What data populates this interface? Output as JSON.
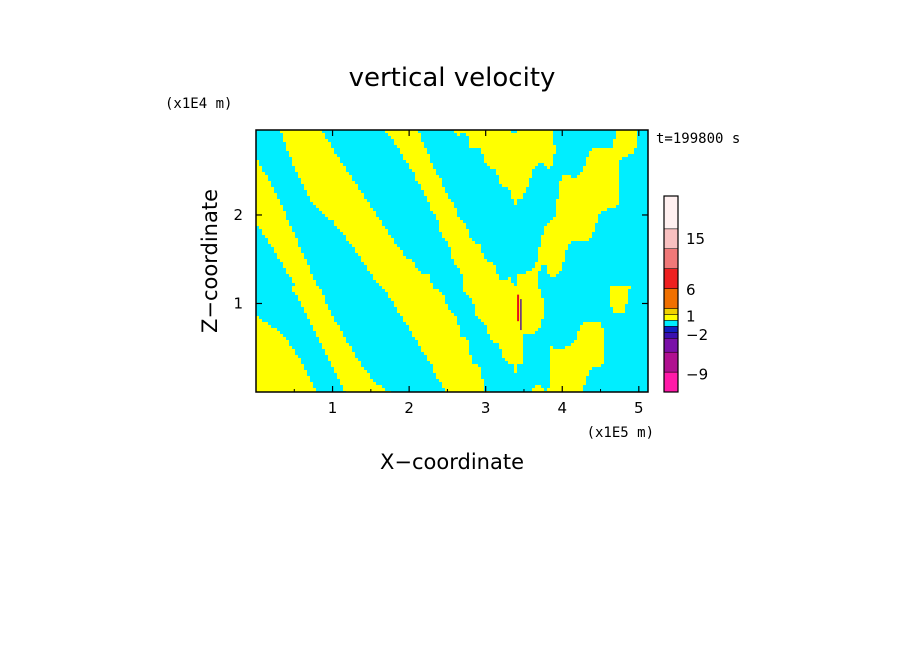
{
  "chart_data": {
    "type": "heatmap",
    "title": "vertical velocity",
    "xlabel": "X−coordinate",
    "ylabel": "Z−coordinate",
    "x_scale_label": "(x1E5 m)",
    "y_scale_label": "(x1E4 m)",
    "time_label": "t=199800 s",
    "xlim": [
      0,
      5.12
    ],
    "ylim": [
      0,
      2.96
    ],
    "x_ticks": [
      {
        "value": 1,
        "label": "1"
      },
      {
        "value": 2,
        "label": "2"
      },
      {
        "value": 3,
        "label": "3"
      },
      {
        "value": 4,
        "label": "4"
      },
      {
        "value": 5,
        "label": "5"
      }
    ],
    "y_ticks": [
      {
        "value": 1,
        "label": "1"
      },
      {
        "value": 2,
        "label": "2"
      }
    ],
    "field_colors": {
      "positive": "#ffff00",
      "negative": "#00eeff",
      "strong_positive": "#e8101a",
      "strong_negative": "#5a2090"
    },
    "colorbar": {
      "bins": [
        {
          "color": "#ff1aa8"
        },
        {
          "color": "#b01090"
        },
        {
          "color": "#7a10a8"
        },
        {
          "color": "#3a10b0"
        },
        {
          "color": "#1020c0"
        },
        {
          "color": "#00eeff"
        },
        {
          "color": "#ffff00"
        },
        {
          "color": "#f0d000"
        },
        {
          "color": "#f07000"
        },
        {
          "color": "#ee2020"
        },
        {
          "color": "#f07878"
        },
        {
          "color": "#f8c0c0"
        },
        {
          "color": "#fff0f0"
        }
      ],
      "bin_heights": [
        2,
        2,
        1.4,
        0.6,
        0.6,
        0.6,
        0.6,
        0.6,
        2,
        2,
        2,
        2,
        3.3
      ],
      "labels": [
        {
          "label": "−9",
          "position": 0.09
        },
        {
          "label": "−2",
          "position": 0.29
        },
        {
          "label": "1",
          "position": 0.385
        },
        {
          "label": "6",
          "position": 0.52
        },
        {
          "label": "15",
          "position": 0.78
        }
      ]
    }
  }
}
